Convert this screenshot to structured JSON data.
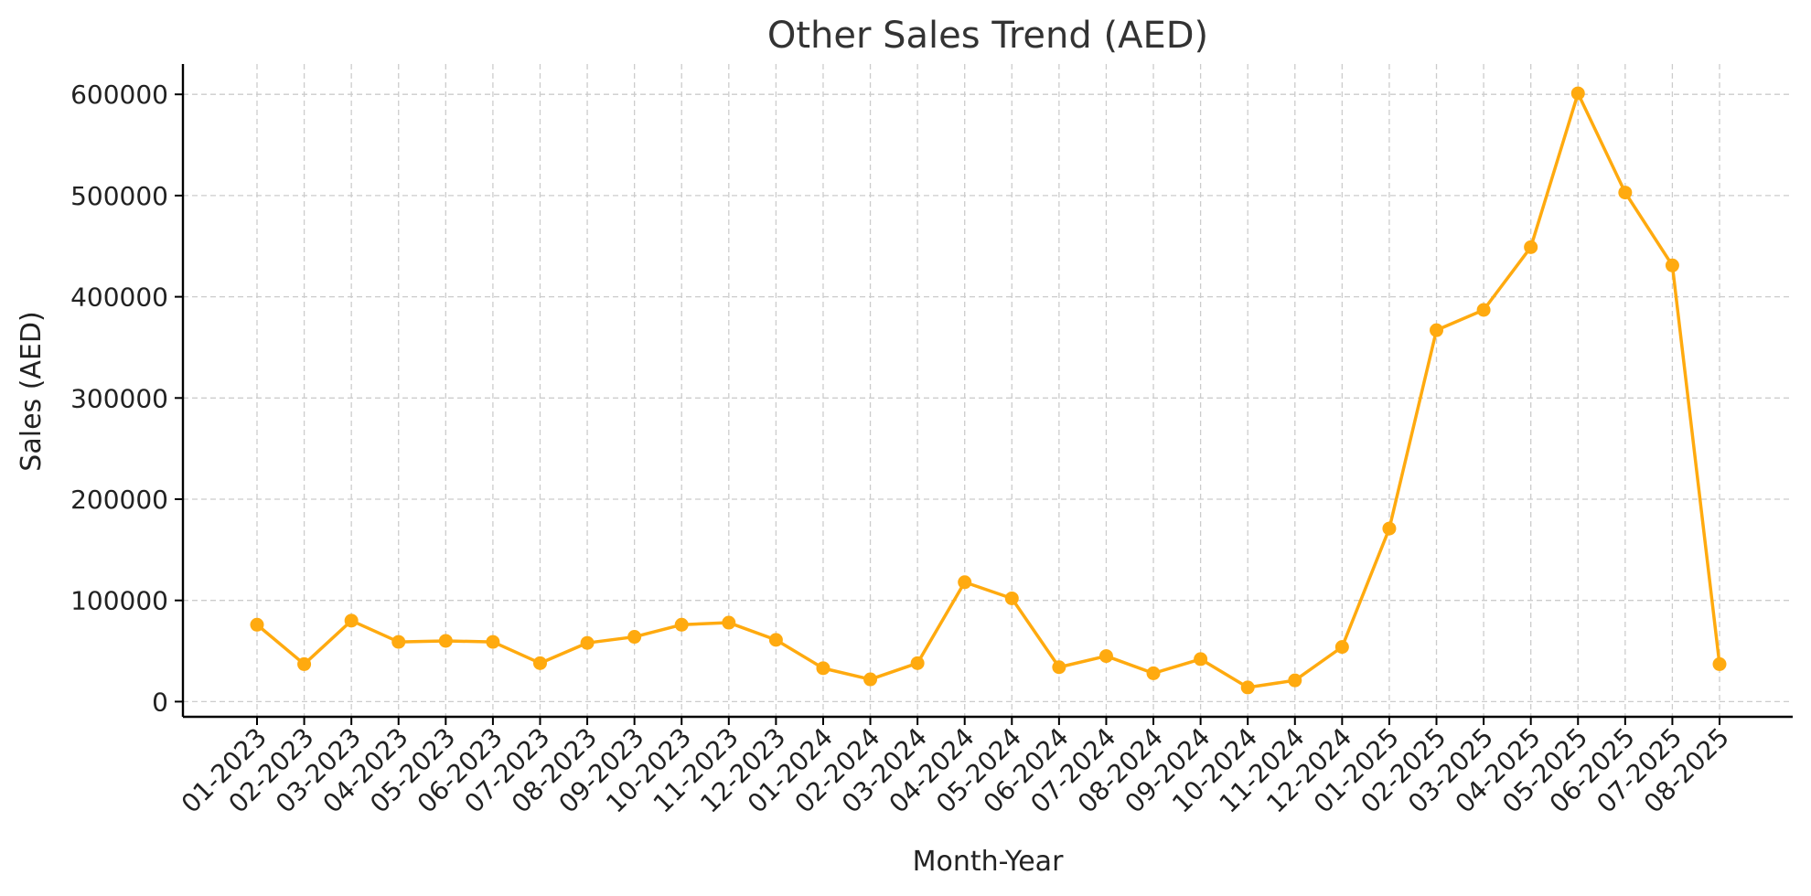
{
  "chart_data": {
    "type": "line",
    "title": "Other Sales Trend (AED)",
    "xlabel": "Month-Year",
    "ylabel": "Sales (AED)",
    "categories": [
      "01-2023",
      "02-2023",
      "03-2023",
      "04-2023",
      "05-2023",
      "06-2023",
      "07-2023",
      "08-2023",
      "09-2023",
      "10-2023",
      "11-2023",
      "12-2023",
      "01-2024",
      "02-2024",
      "03-2024",
      "04-2024",
      "05-2024",
      "06-2024",
      "07-2024",
      "08-2024",
      "09-2024",
      "10-2024",
      "11-2024",
      "12-2024",
      "01-2025",
      "02-2025",
      "03-2025",
      "04-2025",
      "05-2025",
      "06-2025",
      "07-2025",
      "08-2025"
    ],
    "series": [
      {
        "values": [
          76000,
          37000,
          80000,
          59000,
          60000,
          59000,
          38000,
          58000,
          64000,
          76000,
          78000,
          61000,
          33000,
          22000,
          38000,
          118000,
          102000,
          34000,
          45000,
          28000,
          42000,
          14000,
          21000,
          54000,
          171000,
          367000,
          387000,
          449000,
          601000,
          503000,
          431000,
          37000
        ],
        "color": "#FFAA0F"
      }
    ],
    "yticks": [
      0,
      100000,
      200000,
      300000,
      400000,
      500000,
      600000
    ],
    "ylim": [
      -15000,
      630000
    ],
    "grid": true,
    "legend": "none"
  }
}
